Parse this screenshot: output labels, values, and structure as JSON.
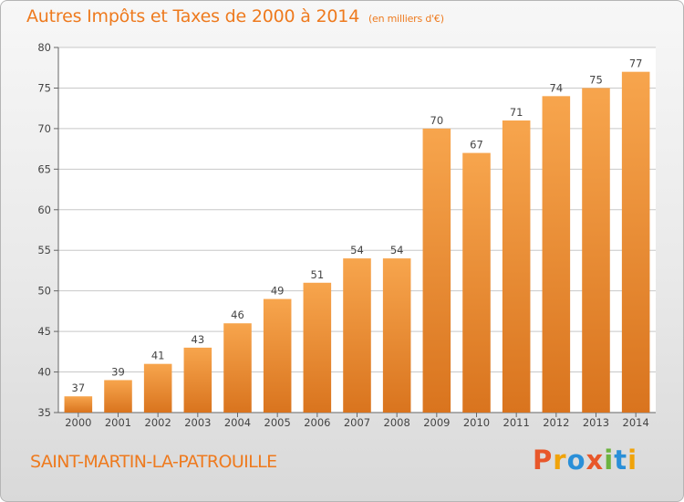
{
  "title": "Autres Impôts et Taxes de 2000 à 2014",
  "subtitle": "(en milliers d'€)",
  "location": "SAINT-MARTIN-LA-PATROUILLE",
  "logo": {
    "text": "Proxiti",
    "letters": [
      "P",
      "r",
      "o",
      "x",
      "i",
      "t",
      "i"
    ],
    "colors": [
      "#e8572a",
      "#f0a30a",
      "#2a8fd8",
      "#e8572a",
      "#6cb33f",
      "#2a8fd8",
      "#f0a30a"
    ]
  },
  "colors": {
    "bar_light": "#f7a54d",
    "bar_dark": "#d9741e",
    "title": "#ee7a1e",
    "grid": "#c8c8c8"
  },
  "chart_data": {
    "type": "bar",
    "categories": [
      "2000",
      "2001",
      "2002",
      "2003",
      "2004",
      "2005",
      "2006",
      "2007",
      "2008",
      "2009",
      "2010",
      "2011",
      "2012",
      "2013",
      "2014"
    ],
    "values": [
      37,
      39,
      41,
      43,
      46,
      49,
      51,
      54,
      54,
      70,
      67,
      71,
      74,
      75,
      77
    ],
    "ylim": [
      35,
      80
    ],
    "yticks": [
      35,
      40,
      45,
      50,
      55,
      60,
      65,
      70,
      75,
      80
    ],
    "grid": true
  }
}
